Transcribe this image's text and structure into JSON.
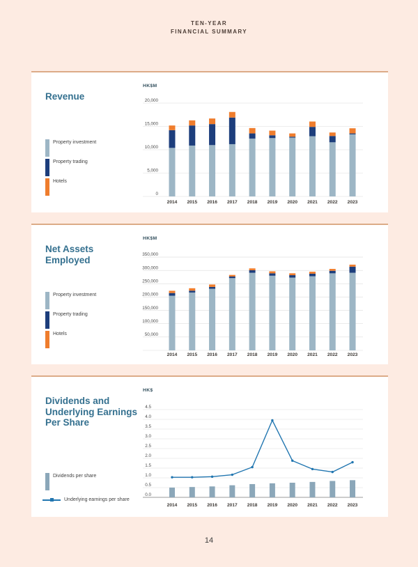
{
  "header": {
    "line1": "TEN-YEAR",
    "line2": "FINANCIAL SUMMARY"
  },
  "page_number": "14",
  "colors": {
    "page_background": "#fdebe2",
    "card_background": "#ffffff",
    "card_top_border": "#dcab87",
    "chart_title": "#34708f",
    "gridline": "#dedede",
    "property_investment": "#9db6c5",
    "property_trading": "#1d3e7c",
    "hotels": "#ef7d2d",
    "dividends_bar": "#8ba7b9",
    "earnings_line": "#2176b0"
  },
  "chart_data": [
    {
      "id": "revenue",
      "type": "stacked_bar",
      "title": "Revenue",
      "unit": "HK$M",
      "categories": [
        "2014",
        "2015",
        "2016",
        "2017",
        "2018",
        "2019",
        "2020",
        "2021",
        "2022",
        "2023"
      ],
      "series": [
        {
          "name": "Property investment",
          "type": "bar",
          "color": "#9db6c5",
          "values": [
            10400,
            10900,
            11000,
            11200,
            12400,
            12500,
            12600,
            12900,
            11600,
            13300
          ]
        },
        {
          "name": "Property trading",
          "type": "bar",
          "color": "#1d3e7c",
          "values": [
            3800,
            4300,
            4500,
            5700,
            1100,
            600,
            200,
            2000,
            1350,
            200
          ]
        },
        {
          "name": "Hotels",
          "type": "bar",
          "color": "#ef7d2d",
          "values": [
            1000,
            1100,
            1200,
            1200,
            1150,
            1000,
            700,
            1150,
            750,
            1100
          ]
        }
      ],
      "ylim": [
        0,
        20000
      ],
      "ytick_step": 5000,
      "yticks": [
        "0",
        "5,000",
        "10,000",
        "15,000",
        "20,000"
      ],
      "grid": true,
      "legend_position": "left"
    },
    {
      "id": "netassets",
      "type": "stacked_bar",
      "title": "Net Assets\nEmployed",
      "unit": "HK$M",
      "categories": [
        "2014",
        "2015",
        "2016",
        "2017",
        "2018",
        "2019",
        "2020",
        "2021",
        "2022",
        "2023"
      ],
      "series": [
        {
          "name": "Property investment",
          "type": "bar",
          "color": "#9db6c5",
          "values": [
            205000,
            217000,
            231000,
            271000,
            291000,
            280000,
            273000,
            278000,
            289000,
            291000
          ]
        },
        {
          "name": "Property trading",
          "type": "bar",
          "color": "#1d3e7c",
          "values": [
            10000,
            7000,
            7000,
            6000,
            9500,
            9000,
            9000,
            9500,
            9500,
            23000
          ]
        },
        {
          "name": "Hotels",
          "type": "bar",
          "color": "#ef7d2d",
          "values": [
            8500,
            9000,
            9000,
            6000,
            7000,
            7500,
            7000,
            7500,
            7000,
            7500
          ]
        }
      ],
      "ylim": [
        0,
        350000
      ],
      "ytick_step": 50000,
      "yticks": [
        "",
        "50,000",
        "100,000",
        "150,000",
        "200,000",
        "250,000",
        "300,000",
        "350,000"
      ],
      "grid": true,
      "legend_position": "left"
    },
    {
      "id": "dps",
      "type": "bar_line",
      "title": "Dividends and\nUnderlying Earnings\nPer Share",
      "unit": "HK$",
      "categories": [
        "2014",
        "2015",
        "2016",
        "2017",
        "2018",
        "2019",
        "2020",
        "2021",
        "2022",
        "2023"
      ],
      "series": [
        {
          "name": "Dividends per share",
          "type": "bar",
          "color": "#8ba7b9",
          "values": [
            0.5,
            0.53,
            0.56,
            0.62,
            0.68,
            0.72,
            0.75,
            0.79,
            0.84,
            0.88
          ]
        },
        {
          "name": "Underlying earnings per share",
          "type": "line",
          "color": "#2176b0",
          "values": [
            1.03,
            1.03,
            1.06,
            1.16,
            1.55,
            3.95,
            1.88,
            1.45,
            1.3,
            1.8
          ]
        }
      ],
      "ylim": [
        0,
        4.5
      ],
      "ytick_step": 0.5,
      "yticks": [
        "0.0",
        "0.5",
        "1.0",
        "1.5",
        "2.0",
        "2.5",
        "3.0",
        "3.5",
        "4.0",
        "4.5"
      ],
      "grid": true,
      "dark_axis": true,
      "legend_position": "left"
    }
  ]
}
